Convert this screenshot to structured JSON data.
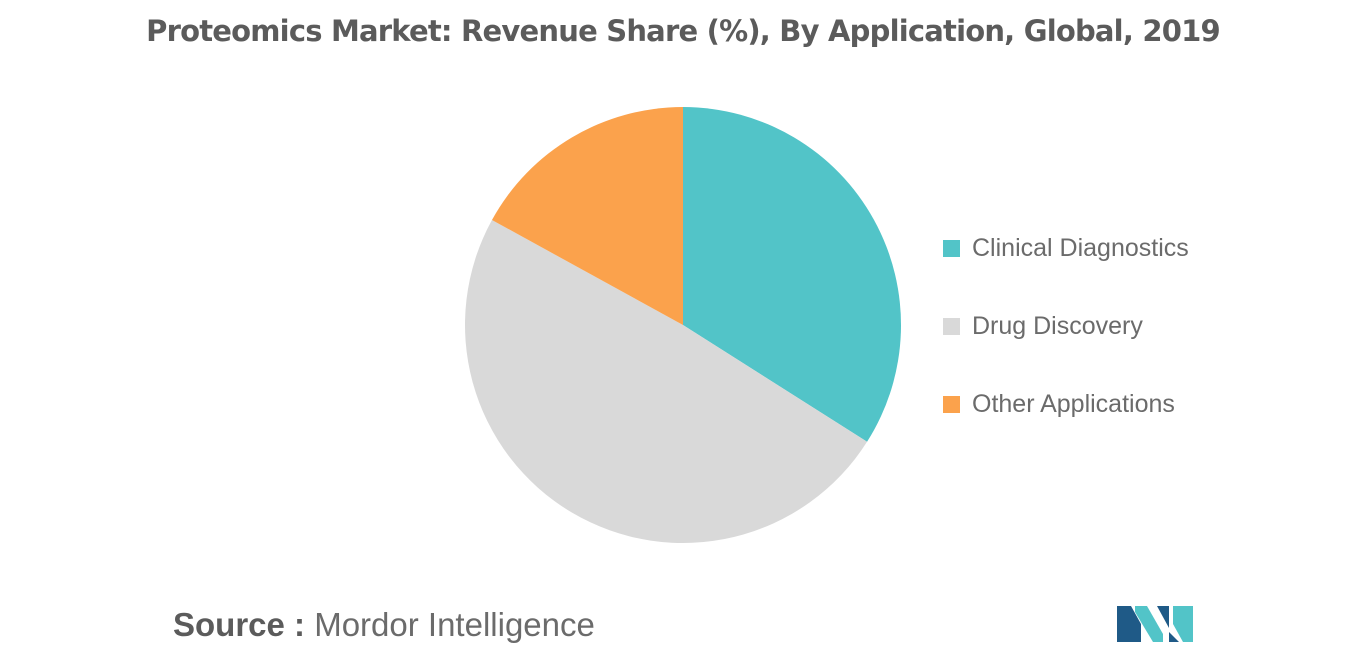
{
  "title": "Proteomics Market: Revenue Share (%), By Application, Global, 2019",
  "chart_data": {
    "type": "pie",
    "title": "Proteomics Market: Revenue Share (%), By Application, Global, 2019",
    "slices": [
      {
        "label": "Clinical Diagnostics",
        "value": 34,
        "color": "#52c4c8"
      },
      {
        "label": "Drug Discovery",
        "value": 49,
        "color": "#d9d9d9"
      },
      {
        "label": "Other Applications",
        "value": 17,
        "color": "#fba24c"
      }
    ],
    "legend_position": "right"
  },
  "legend": [
    {
      "label": "Clinical Diagnostics",
      "color": "#52c4c8"
    },
    {
      "label": "Drug Discovery",
      "color": "#d9d9d9"
    },
    {
      "label": "Other Applications",
      "color": "#fba24c"
    }
  ],
  "source": {
    "prefix": "Source :",
    "text": "Mordor Intelligence"
  },
  "logo": {
    "icon": "mordor-intelligence-logo",
    "colors": [
      "#1f5a87",
      "#52c4c8"
    ]
  }
}
